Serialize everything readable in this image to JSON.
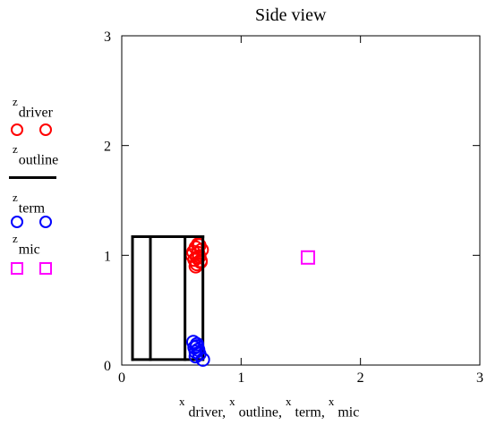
{
  "chart_data": {
    "type": "scatter",
    "title": "Side view",
    "xlabel_parts": [
      {
        "sup": "x",
        "name": "driver"
      },
      {
        "sup": "x",
        "name": "outline"
      },
      {
        "sup": "x",
        "name": "term"
      },
      {
        "sup": "x",
        "name": "mic"
      }
    ],
    "xlim": [
      0,
      3
    ],
    "ylim": [
      0,
      3
    ],
    "x_ticks": [
      0,
      1,
      2,
      3
    ],
    "y_ticks": [
      0,
      1,
      2,
      3
    ],
    "x_tick_labels": [
      "0",
      "1",
      "2",
      "3"
    ],
    "y_tick_labels": [
      "0",
      "1",
      "2",
      "3"
    ],
    "grid": false,
    "legend_position": "left",
    "series": [
      {
        "name": "driver",
        "legend_sup": "z",
        "color": "#ff0000",
        "marker": "circle",
        "x": [
          0.59,
          0.6,
          0.61,
          0.62,
          0.63,
          0.64,
          0.65,
          0.66,
          0.67,
          0.62,
          0.63,
          0.64,
          0.65,
          0.66
        ],
        "y": [
          1.0,
          1.03,
          0.96,
          1.07,
          0.92,
          1.1,
          0.99,
          0.95,
          1.05,
          0.9,
          0.98,
          1.02,
          1.09,
          0.94
        ]
      },
      {
        "name": "outline",
        "legend_sup": "z",
        "color": "#000000",
        "marker": "line",
        "segments": [
          [
            [
              0.09,
              0.05
            ],
            [
              0.68,
              0.05
            ]
          ],
          [
            [
              0.68,
              0.05
            ],
            [
              0.68,
              1.17
            ]
          ],
          [
            [
              0.68,
              1.17
            ],
            [
              0.09,
              1.17
            ]
          ],
          [
            [
              0.09,
              1.17
            ],
            [
              0.09,
              0.05
            ]
          ],
          [
            [
              0.24,
              0.05
            ],
            [
              0.24,
              1.17
            ]
          ],
          [
            [
              0.53,
              0.05
            ],
            [
              0.53,
              1.17
            ]
          ]
        ]
      },
      {
        "name": "term",
        "legend_sup": "z",
        "color": "#0000ff",
        "marker": "circle",
        "x": [
          0.6,
          0.61,
          0.62,
          0.63,
          0.64,
          0.65,
          0.62,
          0.63,
          0.68
        ],
        "y": [
          0.21,
          0.16,
          0.12,
          0.19,
          0.14,
          0.1,
          0.08,
          0.17,
          0.05
        ]
      },
      {
        "name": "mic",
        "legend_sup": "z",
        "color": "#ff00ff",
        "marker": "square",
        "x": [
          1.56
        ],
        "y": [
          0.98
        ]
      }
    ]
  },
  "legend": {
    "items": [
      {
        "sup": "z",
        "name": "driver"
      },
      {
        "sup": "z",
        "name": "outline"
      },
      {
        "sup": "z",
        "name": "term"
      },
      {
        "sup": "z",
        "name": "mic"
      }
    ]
  }
}
